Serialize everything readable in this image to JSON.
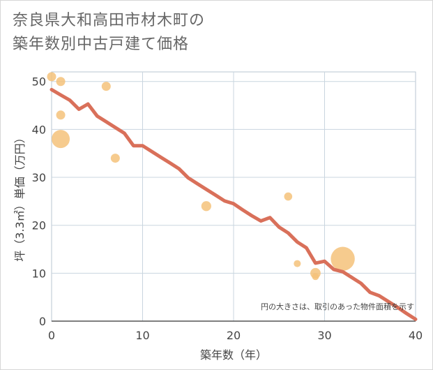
{
  "title": {
    "line1": "奈良県大和高田市材木町の",
    "line2": "築年数別中古戸建て価格"
  },
  "colors": {
    "bubble": "#f5c27a",
    "line": "#d9705a",
    "grid": "#c9d5df",
    "plot_border": "#b8c6d2"
  },
  "chart_data": {
    "type": "scatter",
    "title": "奈良県大和高田市材木町の築年数別中古戸建て価格",
    "xlabel": "築年数（年）",
    "ylabel": "坪（3.3㎡）単価（万円）",
    "xlim": [
      0,
      40
    ],
    "ylim": [
      0,
      52
    ],
    "xticks": [
      0,
      10,
      20,
      30,
      40
    ],
    "yticks": [
      0,
      10,
      20,
      30,
      40,
      50
    ],
    "grid": true,
    "note": "円の大きさは、取引のあった物件面積を示す",
    "bubbles": [
      {
        "x": 0,
        "y": 51,
        "size": 1
      },
      {
        "x": 1,
        "y": 50,
        "size": 1
      },
      {
        "x": 1,
        "y": 43,
        "size": 1
      },
      {
        "x": 1,
        "y": 38,
        "size": 4
      },
      {
        "x": 6,
        "y": 49,
        "size": 1
      },
      {
        "x": 7,
        "y": 34,
        "size": 1
      },
      {
        "x": 17,
        "y": 24,
        "size": 1.2
      },
      {
        "x": 26,
        "y": 26,
        "size": 0.8
      },
      {
        "x": 27,
        "y": 12,
        "size": 0.6
      },
      {
        "x": 29,
        "y": 10,
        "size": 1.3
      },
      {
        "x": 29,
        "y": 9.3,
        "size": 0.6
      },
      {
        "x": 32,
        "y": 13,
        "size": 7
      }
    ],
    "trend": {
      "x": [
        0,
        1,
        2,
        3,
        4,
        5,
        6,
        7,
        8,
        9,
        10,
        11,
        12,
        13,
        14,
        15,
        16,
        17,
        18,
        19,
        20,
        21,
        22,
        23,
        24,
        25,
        26,
        27,
        28,
        29,
        30,
        31,
        32,
        33,
        34,
        35,
        36,
        37,
        38,
        39,
        40
      ],
      "y": [
        48.3,
        47.2,
        46.1,
        44.2,
        45.3,
        42.8,
        41.6,
        40.4,
        39.2,
        36.6,
        36.6,
        35.4,
        34.2,
        33,
        31.8,
        29.9,
        28.7,
        27.5,
        26.3,
        25.1,
        24.5,
        23.2,
        22,
        20.9,
        21.6,
        19.6,
        18.4,
        16.5,
        15.3,
        12.1,
        12.5,
        10.8,
        10.3,
        9.1,
        7.9,
        6,
        5.3,
        4.1,
        2.9,
        1.6,
        0.4
      ]
    }
  }
}
